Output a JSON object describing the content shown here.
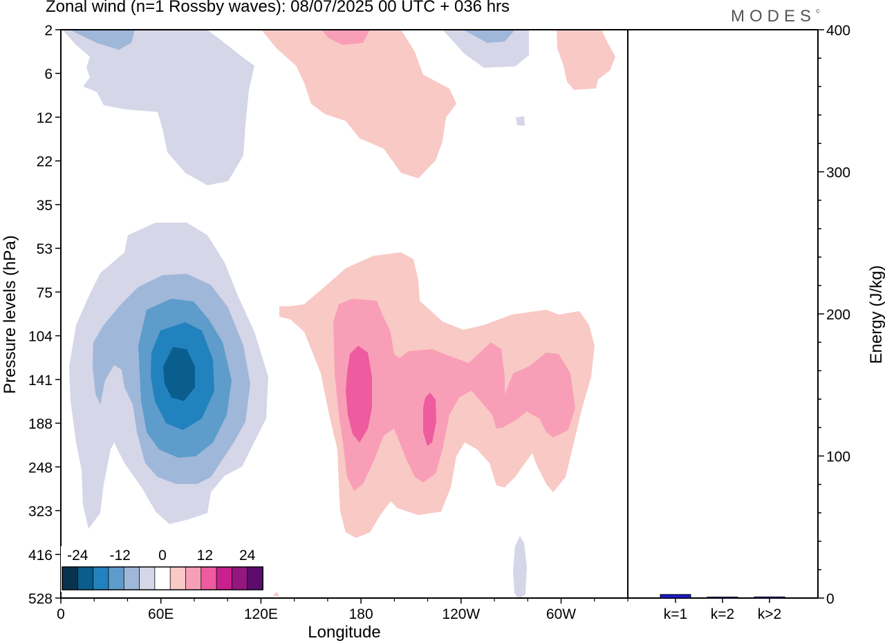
{
  "header": {
    "title": "Zonal wind (n=1 Rossby waves):  08/07/2025  00 UTC  + 036 hrs",
    "brand": "MODES",
    "brand_mark": "©"
  },
  "chart_data": [
    {
      "type": "heatmap",
      "subtype": "filled-contour",
      "xlabel": "Longitude",
      "ylabel": "Pressure levels (hPa)",
      "x_tick_labels": [
        "0",
        "60E",
        "120E",
        "180",
        "120W",
        "60W"
      ],
      "x_tick_degrees_east": [
        0,
        60,
        120,
        180,
        240,
        300
      ],
      "xlim_degrees_east": [
        0,
        340
      ],
      "y_tick_labels": [
        "2",
        "6",
        "12",
        "22",
        "35",
        "53",
        "75",
        "104",
        "141",
        "188",
        "248",
        "323",
        "416",
        "528"
      ],
      "y_axis_inverted": true,
      "colorbar": {
        "tick_labels": [
          "-24",
          "-12",
          "0",
          "12",
          "24"
        ],
        "levels": [
          -27,
          -24,
          -21,
          -18,
          -15,
          -12,
          -9,
          -6,
          -3,
          3,
          6,
          9,
          12,
          15,
          18,
          21,
          24,
          27
        ],
        "colors": [
          "#08334f",
          "#0a5e8e",
          "#2282bd",
          "#5d9ccb",
          "#9fb7d9",
          "#d5d6e8",
          "#ffffff",
          "#f9c9c5",
          "#f89fb7",
          "#ee5b9e",
          "#c9208e",
          "#941780",
          "#5d0c6e"
        ]
      },
      "features": [
        {
          "sign": "negative",
          "peak_value": -15,
          "lon_degrees_east": 75,
          "pressure_hpa": 141
        },
        {
          "sign": "positive",
          "peak_value": 12,
          "lon_degrees_east": 190,
          "pressure_hpa": 160
        },
        {
          "sign": "positive",
          "peak_value": 12,
          "lon_degrees_east": 247,
          "pressure_hpa": 188
        },
        {
          "sign": "positive",
          "peak_value": 9,
          "lon_degrees_east": 320,
          "pressure_hpa": 170
        },
        {
          "sign": "negative",
          "peak_value": -6,
          "lon_degrees_east": 35,
          "pressure_hpa": 2
        },
        {
          "sign": "negative",
          "peak_value": -6,
          "lon_degrees_east": 282,
          "pressure_hpa": 2
        },
        {
          "sign": "positive",
          "peak_value": 6,
          "lon_degrees_east": 190,
          "pressure_hpa": 2
        }
      ]
    },
    {
      "type": "bar",
      "categories": [
        "k=1",
        "k=2",
        "k>2"
      ],
      "values": [
        2.5,
        0.3,
        0.8
      ],
      "ylabel": "Energy (J/kg)",
      "ylim": [
        0,
        400
      ],
      "y_ticks": [
        0,
        100,
        200,
        300,
        400
      ],
      "bar_color": "#1a1acc"
    }
  ]
}
